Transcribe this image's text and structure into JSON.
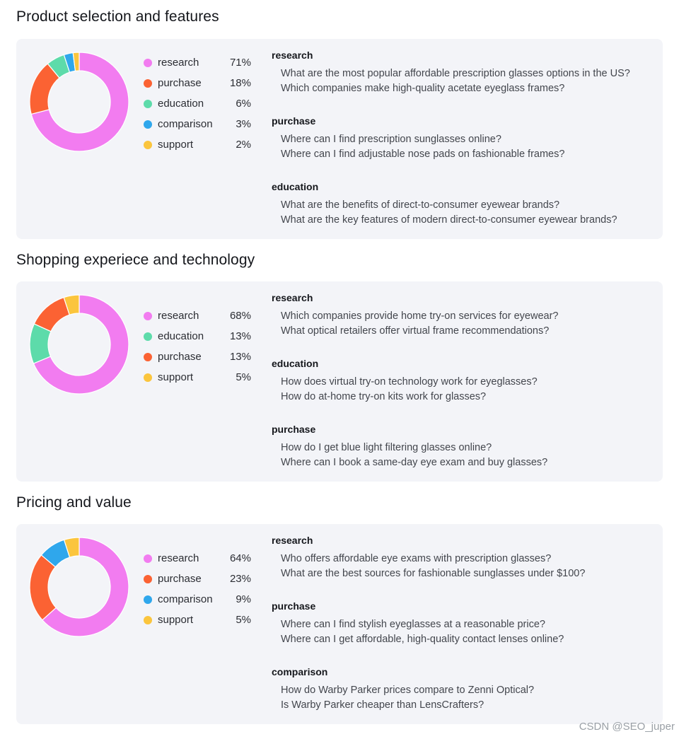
{
  "colors": {
    "research": "#f27cf0",
    "purchase": "#fb6233",
    "education": "#5ddbaa",
    "comparison": "#2fa7ec",
    "support": "#fbc53d"
  },
  "sections": [
    {
      "title": "Product selection and features",
      "legend": [
        {
          "label": "research",
          "pct_text": "71%"
        },
        {
          "label": "purchase",
          "pct_text": "18%"
        },
        {
          "label": "education",
          "pct_text": "6%"
        },
        {
          "label": "comparison",
          "pct_text": "3%"
        },
        {
          "label": "support",
          "pct_text": "2%"
        }
      ],
      "groups": [
        {
          "heading": "research",
          "queries": [
            "What are the most popular affordable prescription glasses options in the US?",
            "Which companies make high-quality acetate eyeglass frames?"
          ]
        },
        {
          "heading": "purchase",
          "queries": [
            "Where can I find prescription sunglasses online?",
            "Where can I find adjustable nose pads on fashionable frames?"
          ]
        },
        {
          "heading": "education",
          "queries": [
            "What are the benefits of direct-to-consumer eyewear brands?",
            "What are the key features of modern direct-to-consumer eyewear brands?"
          ]
        }
      ]
    },
    {
      "title": "Shopping experiece and technology",
      "legend": [
        {
          "label": "research",
          "pct_text": "68%"
        },
        {
          "label": "education",
          "pct_text": "13%"
        },
        {
          "label": "purchase",
          "pct_text": "13%"
        },
        {
          "label": "support",
          "pct_text": "5%"
        }
      ],
      "groups": [
        {
          "heading": "research",
          "queries": [
            "Which companies provide home try-on services for eyewear?",
            "What optical retailers offer virtual frame recommendations?"
          ]
        },
        {
          "heading": "education",
          "queries": [
            "How does virtual try-on technology work for eyeglasses?",
            "How do at-home try-on kits work for glasses?"
          ]
        },
        {
          "heading": "purchase",
          "queries": [
            "How do I get blue light filtering glasses online?",
            "Where can I book a same-day eye exam and buy glasses?"
          ]
        }
      ]
    },
    {
      "title": "Pricing and value",
      "legend": [
        {
          "label": "research",
          "pct_text": "64%"
        },
        {
          "label": "purchase",
          "pct_text": "23%"
        },
        {
          "label": "comparison",
          "pct_text": "9%"
        },
        {
          "label": "support",
          "pct_text": "5%"
        }
      ],
      "groups": [
        {
          "heading": "research",
          "queries": [
            "Who offers affordable eye exams with prescription glasses?",
            "What are the best sources for fashionable sunglasses under $100?"
          ]
        },
        {
          "heading": "purchase",
          "queries": [
            "Where can I find stylish eyeglasses at a reasonable price?",
            "Where can I get affordable, high-quality contact lenses online?"
          ]
        },
        {
          "heading": "comparison",
          "queries": [
            "How do Warby Parker prices compare to Zenni Optical?",
            "Is Warby Parker cheaper than LensCrafters?"
          ]
        }
      ]
    }
  ],
  "chart_data": [
    {
      "type": "pie",
      "categories": [
        "research",
        "purchase",
        "education",
        "comparison",
        "support"
      ],
      "values": [
        71,
        18,
        6,
        3,
        2
      ]
    },
    {
      "type": "pie",
      "categories": [
        "research",
        "education",
        "purchase",
        "support"
      ],
      "values": [
        68,
        13,
        13,
        5
      ]
    },
    {
      "type": "pie",
      "categories": [
        "research",
        "purchase",
        "comparison",
        "support"
      ],
      "values": [
        64,
        23,
        9,
        5
      ]
    }
  ],
  "watermark": "CSDN @SEO_juper"
}
